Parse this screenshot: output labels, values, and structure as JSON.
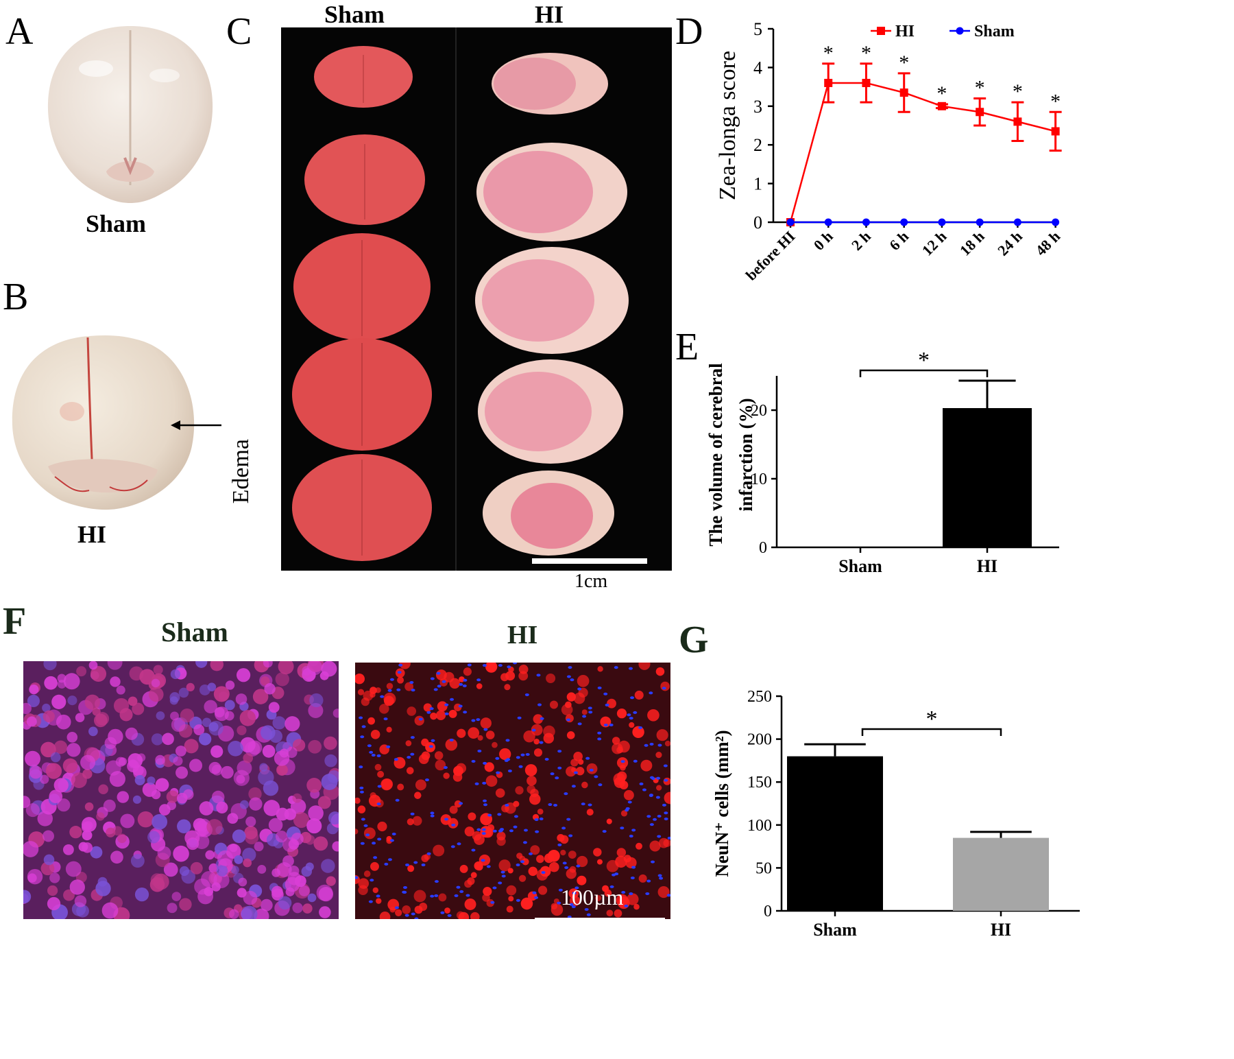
{
  "panels": {
    "A": {
      "letter": "A",
      "caption": "Sham"
    },
    "B": {
      "letter": "B",
      "caption": "HI",
      "arrow_label": "Edema"
    },
    "C": {
      "letter": "C",
      "col_left": "Sham",
      "col_right": "HI",
      "scale_label": "1cm"
    },
    "D": {
      "letter": "D"
    },
    "E": {
      "letter": "E"
    },
    "F": {
      "letter": "F",
      "left_title": "Sham",
      "right_title": "HI",
      "scale_label": "100µm"
    },
    "G": {
      "letter": "G"
    }
  },
  "colors": {
    "hi_series": "#ff0000",
    "sham_series": "#0000ff",
    "bar_black": "#000000",
    "bar_gray": "#a6a6a6"
  },
  "chart_data": [
    {
      "id": "D",
      "type": "line",
      "ylabel": "Zea-longa score",
      "ylim": [
        0,
        5
      ],
      "yticks": [
        0,
        1,
        2,
        3,
        4,
        5
      ],
      "categories": [
        "before HI",
        "0 h",
        "2 h",
        "6 h",
        "12 h",
        "18 h",
        "24 h",
        "48 h"
      ],
      "legend_position": "top",
      "series": [
        {
          "name": "HI",
          "color": "#ff0000",
          "marker": "square",
          "values": [
            0,
            3.6,
            3.6,
            3.35,
            3.0,
            2.85,
            2.6,
            2.35
          ],
          "errors": [
            0,
            0.5,
            0.5,
            0.5,
            0.05,
            0.35,
            0.5,
            0.5
          ],
          "significance": [
            "",
            "*",
            "*",
            "*",
            "*",
            "*",
            "*",
            "*"
          ]
        },
        {
          "name": "Sham",
          "color": "#0000ff",
          "marker": "circle",
          "values": [
            0,
            0,
            0,
            0,
            0,
            0,
            0,
            0
          ]
        }
      ]
    },
    {
      "id": "E",
      "type": "bar",
      "ylabel_lines": [
        "The volume of cerebral",
        "infarction (%)"
      ],
      "ylim": [
        0,
        25
      ],
      "yticks": [
        0,
        10,
        20
      ],
      "categories": [
        "Sham",
        "HI"
      ],
      "values": [
        0,
        20.3
      ],
      "errors": [
        0,
        4.0
      ],
      "colors": [
        "#000000",
        "#000000"
      ],
      "significance": "*"
    },
    {
      "id": "G",
      "type": "bar",
      "ylabel": "NeuN⁺ cells (mm²)",
      "ylim": [
        0,
        250
      ],
      "yticks": [
        0,
        50,
        100,
        150,
        200,
        250
      ],
      "categories": [
        "Sham",
        "HI"
      ],
      "values": [
        180,
        85
      ],
      "errors": [
        14,
        7
      ],
      "colors": [
        "#000000",
        "#a6a6a6"
      ],
      "significance": "*"
    }
  ]
}
